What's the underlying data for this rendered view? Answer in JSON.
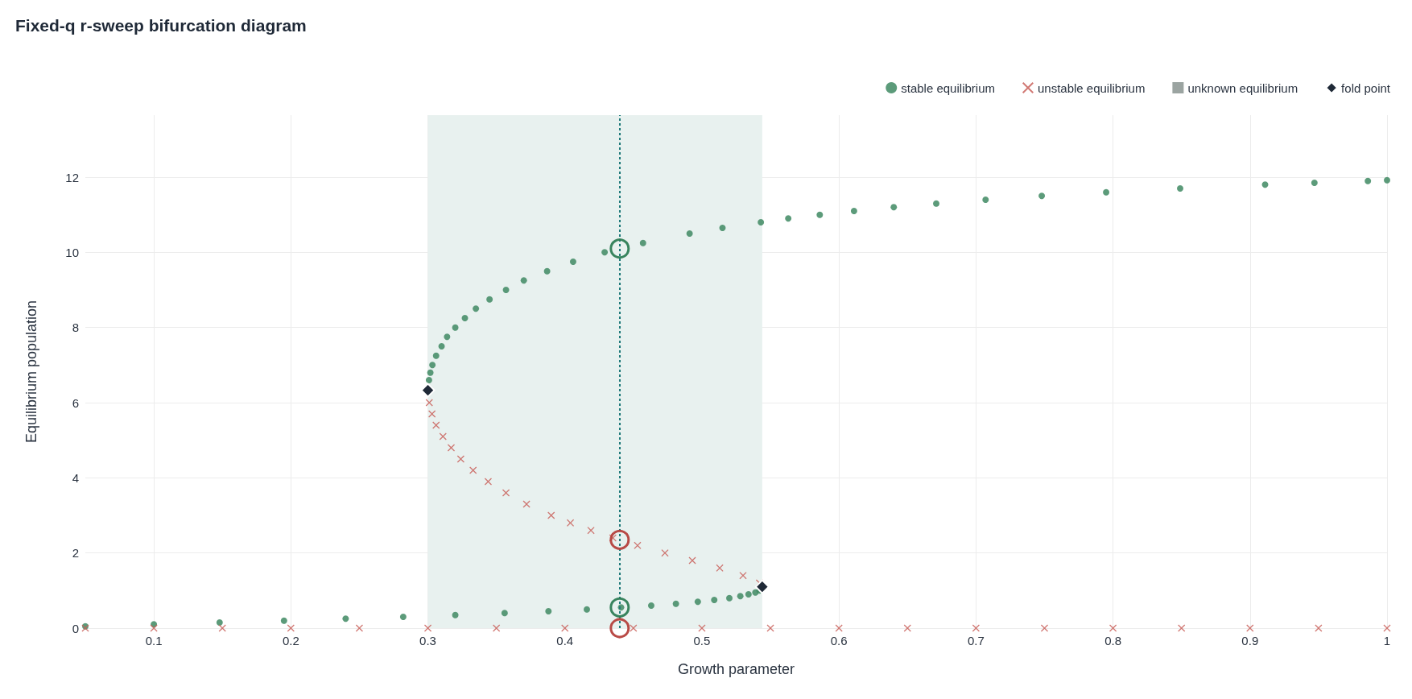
{
  "chart_data": {
    "type": "scatter",
    "title": "Fixed-q r-sweep bifurcation diagram",
    "xlabel": "Growth parameter",
    "ylabel": "Equilibrium population",
    "xlim": [
      0.05,
      1
    ],
    "xticks": [
      0.1,
      0.2,
      0.3,
      0.4,
      0.5,
      0.6,
      0.7,
      0.8,
      0.9,
      1
    ],
    "ylim": [
      0,
      13.65
    ],
    "yticks": [
      0,
      2,
      4,
      6,
      8,
      10,
      12
    ],
    "grid": true,
    "legend": "top right",
    "bands": [
      {
        "axis": "x",
        "from": 0.3,
        "to": 0.544,
        "color": "#e8f1ef"
      }
    ],
    "ref_lines": [
      {
        "axis": "x",
        "value": 0.44,
        "color": "#1f7a7a",
        "line_style": "dotted"
      }
    ],
    "series": [
      {
        "name": "stable equilibrium",
        "marker": "circle",
        "color": "#3f8a63",
        "x": [
          0.05,
          0.1,
          0.148,
          0.195,
          0.24,
          0.282,
          0.32,
          0.356,
          0.388,
          0.416,
          0.441,
          0.463,
          0.481,
          0.497,
          0.509,
          0.52,
          0.528,
          0.534,
          0.539,
          0.542,
          0.3008,
          0.3018,
          0.3033,
          0.306,
          0.31,
          0.314,
          0.32,
          0.327,
          0.335,
          0.345,
          0.357,
          0.37,
          0.387,
          0.406,
          0.429,
          0.457,
          0.491,
          0.515,
          0.543,
          0.563,
          0.586,
          0.611,
          0.64,
          0.671,
          0.707,
          0.748,
          0.795,
          0.849,
          0.911,
          0.947,
          0.986,
          1.0
        ],
        "values": [
          0.05,
          0.1,
          0.15,
          0.2,
          0.25,
          0.3,
          0.35,
          0.4,
          0.45,
          0.5,
          0.55,
          0.6,
          0.65,
          0.7,
          0.75,
          0.8,
          0.85,
          0.9,
          0.95,
          1.0,
          6.6,
          6.8,
          7.0,
          7.25,
          7.5,
          7.75,
          8.0,
          8.25,
          8.5,
          8.75,
          9.0,
          9.25,
          9.5,
          9.75,
          10.0,
          10.25,
          10.5,
          10.65,
          10.8,
          10.9,
          11.0,
          11.1,
          11.2,
          11.3,
          11.4,
          11.5,
          11.6,
          11.7,
          11.8,
          11.85,
          11.9,
          11.92
        ]
      },
      {
        "name": "unstable equilibrium",
        "marker": "cross",
        "color": "#c9605a",
        "x": [
          0.542,
          0.53,
          0.513,
          0.493,
          0.473,
          0.453,
          0.435,
          0.419,
          0.404,
          0.39,
          0.372,
          0.357,
          0.344,
          0.333,
          0.324,
          0.317,
          0.311,
          0.306,
          0.303,
          0.301,
          0.05,
          0.1,
          0.15,
          0.2,
          0.25,
          0.3,
          0.35,
          0.4,
          0.45,
          0.5,
          0.55,
          0.6,
          0.65,
          0.7,
          0.75,
          0.8,
          0.85,
          0.9,
          0.95,
          1.0
        ],
        "values": [
          1.2,
          1.4,
          1.6,
          1.8,
          2.0,
          2.2,
          2.4,
          2.6,
          2.8,
          3.0,
          3.3,
          3.6,
          3.9,
          4.2,
          4.5,
          4.8,
          5.1,
          5.4,
          5.7,
          6.0,
          0,
          0,
          0,
          0,
          0,
          0,
          0,
          0,
          0,
          0,
          0,
          0,
          0,
          0,
          0,
          0,
          0,
          0,
          0,
          0
        ]
      },
      {
        "name": "unknown equilibrium",
        "marker": "square",
        "color": "#8a9490"
      },
      {
        "name": "fold point",
        "marker": "diamond",
        "color": "#1f2937",
        "x": [
          0.3,
          0.544
        ],
        "values": [
          6.33,
          1.1
        ]
      },
      {
        "marker": "circle",
        "color": "#2e7d55",
        "x": [
          0.44,
          0.44
        ],
        "values": [
          10.1,
          0.55
        ]
      },
      {
        "marker": "circle",
        "color": "#b5403c",
        "x": [
          0.44,
          0.44
        ],
        "values": [
          2.35,
          0
        ]
      }
    ]
  }
}
